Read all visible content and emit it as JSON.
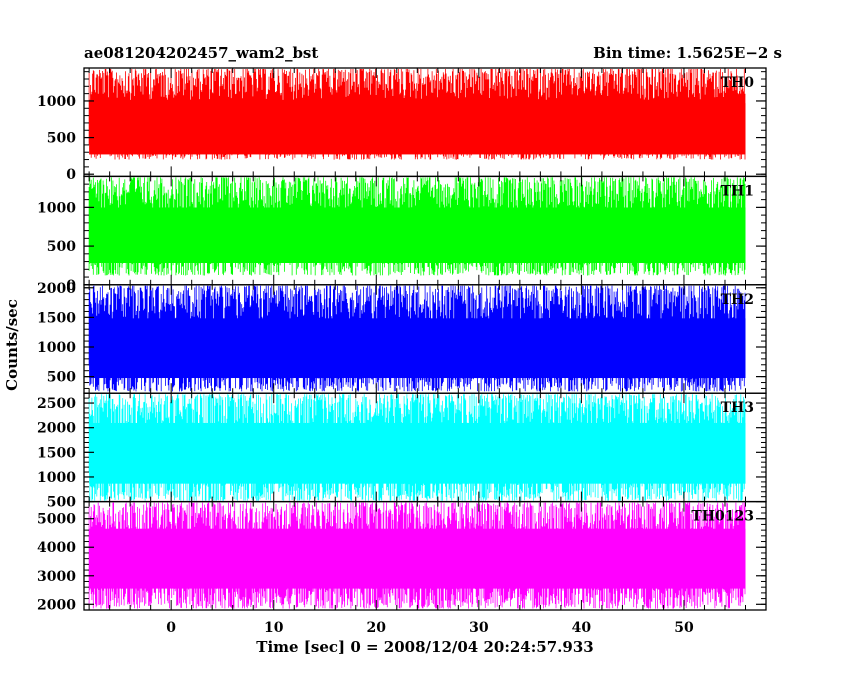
{
  "header": {
    "title_left": "ae081204202457_wam2_bst",
    "title_right": "Bin time: 1.5625E−2 s"
  },
  "axes": {
    "xlabel": "Time [sec] 0 = 2008/12/04 20:24:57.933",
    "ylabel": "Counts/sec"
  },
  "chart_data": {
    "type": "line",
    "xlim": [
      -8.5,
      58
    ],
    "x_ticks": [
      0,
      10,
      20,
      30,
      40,
      50
    ],
    "x_start": -8,
    "x_end": 56,
    "panels": [
      {
        "name": "TH0",
        "color": "#ff0000",
        "ylim": [
          -30,
          1450
        ],
        "yticks": [
          0,
          500,
          1000
        ],
        "mean": 620,
        "noise_low": 200,
        "noise_high": 1450
      },
      {
        "name": "TH1",
        "color": "#00ff00",
        "ylim": [
          0,
          1400
        ],
        "yticks": [
          0,
          500,
          1000
        ],
        "mean": 640,
        "noise_low": 120,
        "noise_high": 1400
      },
      {
        "name": "TH2",
        "color": "#0000ff",
        "ylim": [
          220,
          2050
        ],
        "yticks": [
          500,
          1000,
          1500,
          2000
        ],
        "mean": 980,
        "noise_low": 250,
        "noise_high": 2050
      },
      {
        "name": "TH3",
        "color": "#00ffff",
        "ylim": [
          500,
          2700
        ],
        "yticks": [
          500,
          1000,
          1500,
          2000,
          2500
        ],
        "mean": 1480,
        "noise_low": 500,
        "noise_high": 2700
      },
      {
        "name": "TH0123",
        "color": "#ff00ff",
        "ylim": [
          1800,
          5600
        ],
        "yticks": [
          2000,
          3000,
          4000,
          5000
        ],
        "mean": 3600,
        "noise_low": 1850,
        "noise_high": 5600
      }
    ]
  }
}
